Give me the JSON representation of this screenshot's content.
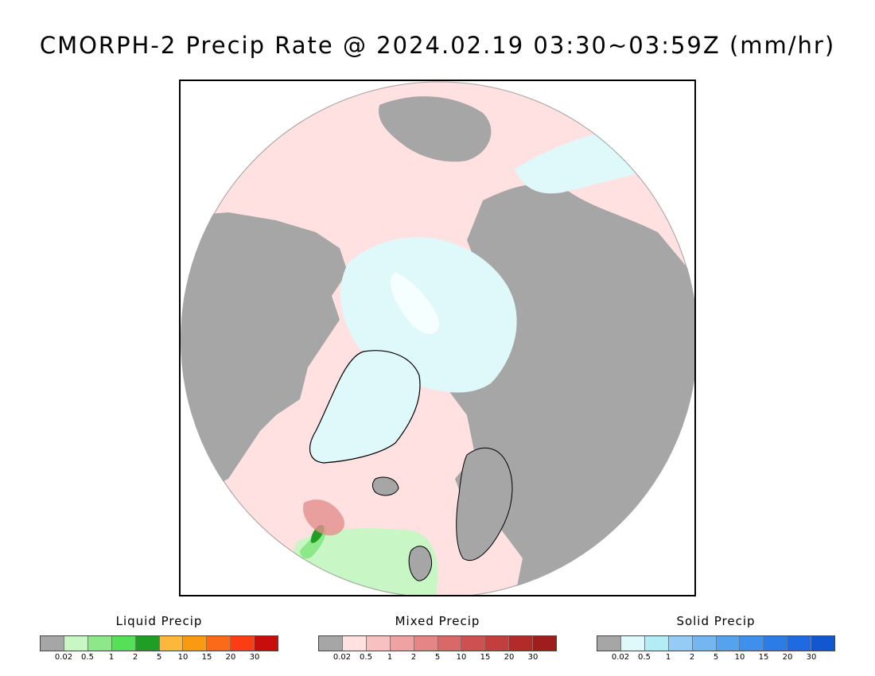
{
  "title": "CMORPH-2 Precip Rate @ 2024.02.19 03:30~03:59Z (mm/hr)",
  "map": {
    "projection": "polar-stereographic-north",
    "colors": {
      "no_precip": "#a6a6a6",
      "ocean_mixed_light": "#ffe1e1",
      "solid_light": "#dff8fa",
      "solid_pale": "#f5ffff",
      "liquid_light": "#c8f7c5",
      "liquid_mid": "#8ce889",
      "liquid_strong": "#1f9e25",
      "mixed_mid": "#e58f8f",
      "coastline": "#000000"
    }
  },
  "legends": [
    {
      "title": "Liquid Precip",
      "colors": [
        "#a6a6a6",
        "#c8f7c5",
        "#8ce889",
        "#55e058",
        "#1f9e25",
        "#fdb73a",
        "#fa9a12",
        "#fa6a18",
        "#fa3d12",
        "#c80d0d"
      ],
      "ticks": [
        "0.02",
        "0.5",
        "1",
        "2",
        "5",
        "10",
        "15",
        "20",
        "30"
      ]
    },
    {
      "title": "Mixed Precip",
      "colors": [
        "#a6a6a6",
        "#ffe1e1",
        "#f8c1c1",
        "#eea2a2",
        "#e58585",
        "#da6868",
        "#cf5050",
        "#c33e3e",
        "#b22a2a",
        "#9e1e1e"
      ],
      "ticks": [
        "0.02",
        "0.5",
        "1",
        "2",
        "5",
        "10",
        "15",
        "20",
        "30"
      ]
    },
    {
      "title": "Solid Precip",
      "colors": [
        "#a6a6a6",
        "#dff8fa",
        "#b3ecf5",
        "#94ccf5",
        "#74b6f2",
        "#55a2ef",
        "#3f8fec",
        "#2c7ce8",
        "#1f6ae0",
        "#1257d0"
      ],
      "ticks": [
        "0.02",
        "0.5",
        "1",
        "2",
        "5",
        "10",
        "15",
        "20",
        "30"
      ]
    }
  ]
}
